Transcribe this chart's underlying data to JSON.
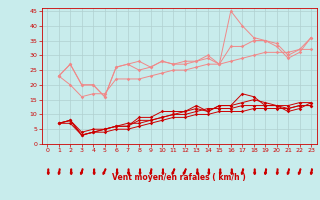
{
  "xlabel": "Vent moyen/en rafales ( km/h )",
  "background_color": "#c8ecec",
  "grid_color": "#b0d0d0",
  "xlim": [
    -0.5,
    23.5
  ],
  "ylim": [
    0,
    46
  ],
  "yticks": [
    0,
    5,
    10,
    15,
    20,
    25,
    30,
    35,
    40,
    45
  ],
  "xticks": [
    0,
    1,
    2,
    3,
    4,
    5,
    6,
    7,
    8,
    9,
    10,
    11,
    12,
    13,
    14,
    15,
    16,
    17,
    18,
    19,
    20,
    21,
    22,
    23
  ],
  "light_pink_lines": [
    [
      23,
      27,
      20,
      20,
      16,
      26,
      27,
      28,
      26,
      28,
      27,
      27,
      28,
      29,
      27,
      45,
      40,
      36,
      35,
      33,
      29,
      31,
      36
    ],
    [
      23,
      27,
      20,
      20,
      16,
      26,
      27,
      25,
      26,
      28,
      27,
      28,
      28,
      30,
      27,
      33,
      33,
      35,
      35,
      34,
      30,
      32,
      36
    ],
    [
      23,
      20,
      16,
      17,
      17,
      22,
      22,
      22,
      23,
      24,
      25,
      25,
      26,
      27,
      27,
      28,
      29,
      30,
      31,
      31,
      31,
      32,
      32
    ]
  ],
  "dark_red_lines": [
    [
      7,
      8,
      3,
      4,
      5,
      6,
      6,
      9,
      9,
      11,
      11,
      11,
      13,
      11,
      13,
      13,
      17,
      16,
      13,
      13,
      11,
      12,
      14
    ],
    [
      7,
      8,
      3,
      4,
      5,
      6,
      6,
      8,
      8,
      9,
      10,
      11,
      12,
      11,
      13,
      13,
      14,
      15,
      14,
      13,
      12,
      13,
      13
    ],
    [
      7,
      8,
      4,
      5,
      5,
      6,
      7,
      7,
      8,
      9,
      10,
      10,
      11,
      12,
      12,
      12,
      13,
      13,
      13,
      13,
      13,
      14,
      14
    ],
    [
      7,
      7,
      3,
      4,
      4,
      5,
      5,
      6,
      7,
      8,
      9,
      9,
      10,
      10,
      11,
      11,
      11,
      12,
      12,
      12,
      12,
      13,
      13
    ]
  ],
  "x_start": 1,
  "light_color": "#f08888",
  "dark_color": "#cc0000",
  "arrow_angles": [
    180,
    200,
    180,
    220,
    180,
    240,
    180,
    180,
    180,
    200,
    180,
    230,
    240,
    180,
    180,
    180,
    180,
    210,
    180,
    200,
    190,
    210,
    220,
    200
  ]
}
